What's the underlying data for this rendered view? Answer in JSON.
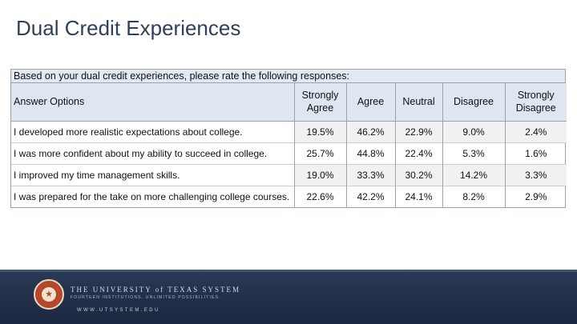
{
  "slide": {
    "title": "Dual Credit Experiences"
  },
  "survey": {
    "question": "Based on your dual credit experiences, please rate the following responses:",
    "headers": [
      "Answer Options",
      "Strongly Agree",
      "Agree",
      "Neutral",
      "Disagree",
      "Strongly Disagree"
    ],
    "rows": [
      {
        "option": "I developed more realistic expectations about college.",
        "values": [
          "19.5%",
          "46.2%",
          "22.9%",
          "9.0%",
          "2.4%"
        ]
      },
      {
        "option": "I was more confident about my ability to succeed in college.",
        "values": [
          "25.7%",
          "44.8%",
          "22.4%",
          "5.3%",
          "1.6%"
        ]
      },
      {
        "option": "I improved my time management skills.",
        "values": [
          "19.0%",
          "33.3%",
          "30.2%",
          "14.2%",
          "3.3%"
        ]
      },
      {
        "option": "I was prepared for the take on more challenging college courses.",
        "values": [
          "22.6%",
          "42.2%",
          "24.1%",
          "8.2%",
          "2.9%"
        ]
      }
    ]
  },
  "footer": {
    "org_name": "THE UNIVERSITY of TEXAS SYSTEM",
    "tagline": "FOURTEEN INSTITUTIONS. UNLIMITED POSSIBILITIES.",
    "url": "WWW.UTSYSTEM.EDU",
    "seal_icon": "university-seal-icon"
  },
  "colors": {
    "title": "#2f3f5c",
    "header_bg": "#dde6f1",
    "footer_bg": "#1a2740",
    "seal": "#b5472a"
  }
}
